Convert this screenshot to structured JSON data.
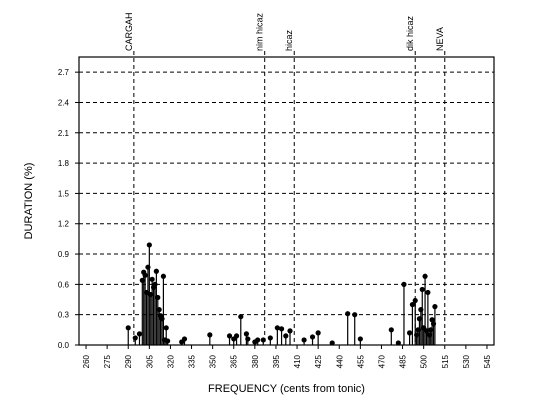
{
  "chart_data": {
    "type": "stem",
    "xlabel": "FREQUENCY (cents from tonic)",
    "ylabel": "DURATION (%)",
    "xlim": [
      255,
      550
    ],
    "ylim": [
      0,
      2.85
    ],
    "x_ticks": [
      260,
      275,
      290,
      305,
      320,
      335,
      350,
      365,
      380,
      395,
      410,
      425,
      440,
      455,
      470,
      485,
      500,
      515,
      530,
      545
    ],
    "y_ticks": [
      0.0,
      0.3,
      0.6,
      0.9,
      1.2,
      1.5,
      1.8,
      2.1,
      2.4,
      2.7
    ],
    "grid": true,
    "reference_lines": [
      {
        "x": 294,
        "label": "CARGAH"
      },
      {
        "x": 387,
        "label": "nim hicaz"
      },
      {
        "x": 408,
        "label": "hicaz"
      },
      {
        "x": 494,
        "label": "dik hicaz"
      },
      {
        "x": 515,
        "label": "NEVA"
      }
    ],
    "points": [
      {
        "x": 290,
        "y": 0.17
      },
      {
        "x": 295,
        "y": 0.07
      },
      {
        "x": 298,
        "y": 0.11
      },
      {
        "x": 300,
        "y": 0.64
      },
      {
        "x": 301,
        "y": 0.72
      },
      {
        "x": 302,
        "y": 0.69
      },
      {
        "x": 303,
        "y": 0.52
      },
      {
        "x": 304,
        "y": 0.77
      },
      {
        "x": 305,
        "y": 0.99
      },
      {
        "x": 306,
        "y": 0.5
      },
      {
        "x": 307,
        "y": 0.65
      },
      {
        "x": 308,
        "y": 0.57
      },
      {
        "x": 309,
        "y": 0.6
      },
      {
        "x": 310,
        "y": 0.73
      },
      {
        "x": 311,
        "y": 0.47
      },
      {
        "x": 312,
        "y": 0.35
      },
      {
        "x": 313,
        "y": 0.29
      },
      {
        "x": 314,
        "y": 0.26
      },
      {
        "x": 315,
        "y": 0.68
      },
      {
        "x": 316,
        "y": 0.05
      },
      {
        "x": 317,
        "y": 0.17
      },
      {
        "x": 318,
        "y": 0.04
      },
      {
        "x": 328,
        "y": 0.03
      },
      {
        "x": 330,
        "y": 0.06
      },
      {
        "x": 348,
        "y": 0.1
      },
      {
        "x": 362,
        "y": 0.09
      },
      {
        "x": 365,
        "y": 0.06
      },
      {
        "x": 367,
        "y": 0.09
      },
      {
        "x": 370,
        "y": 0.28
      },
      {
        "x": 374,
        "y": 0.11
      },
      {
        "x": 375,
        "y": 0.06
      },
      {
        "x": 380,
        "y": 0.03
      },
      {
        "x": 382,
        "y": 0.05
      },
      {
        "x": 386,
        "y": 0.05
      },
      {
        "x": 391,
        "y": 0.07
      },
      {
        "x": 396,
        "y": 0.17
      },
      {
        "x": 399,
        "y": 0.16
      },
      {
        "x": 402,
        "y": 0.09
      },
      {
        "x": 405,
        "y": 0.14
      },
      {
        "x": 415,
        "y": 0.05
      },
      {
        "x": 421,
        "y": 0.08
      },
      {
        "x": 425,
        "y": 0.12
      },
      {
        "x": 435,
        "y": 0.02
      },
      {
        "x": 446,
        "y": 0.31
      },
      {
        "x": 451,
        "y": 0.3
      },
      {
        "x": 455,
        "y": 0.06
      },
      {
        "x": 477,
        "y": 0.15
      },
      {
        "x": 482,
        "y": 0.02
      },
      {
        "x": 486,
        "y": 0.6
      },
      {
        "x": 490,
        "y": 0.12
      },
      {
        "x": 492,
        "y": 0.4
      },
      {
        "x": 494,
        "y": 0.44
      },
      {
        "x": 495,
        "y": 0.1
      },
      {
        "x": 496,
        "y": 0.15
      },
      {
        "x": 497,
        "y": 0.26
      },
      {
        "x": 498,
        "y": 0.35
      },
      {
        "x": 499,
        "y": 0.55
      },
      {
        "x": 500,
        "y": 0.17
      },
      {
        "x": 501,
        "y": 0.68
      },
      {
        "x": 502,
        "y": 0.14
      },
      {
        "x": 503,
        "y": 0.52
      },
      {
        "x": 504,
        "y": 0.1
      },
      {
        "x": 505,
        "y": 0.15
      },
      {
        "x": 506,
        "y": 0.25
      },
      {
        "x": 507,
        "y": 0.21
      },
      {
        "x": 508,
        "y": 0.38
      }
    ]
  },
  "colors": {
    "background": "#ffffff",
    "ink": "#000000",
    "grid": "#000000"
  }
}
